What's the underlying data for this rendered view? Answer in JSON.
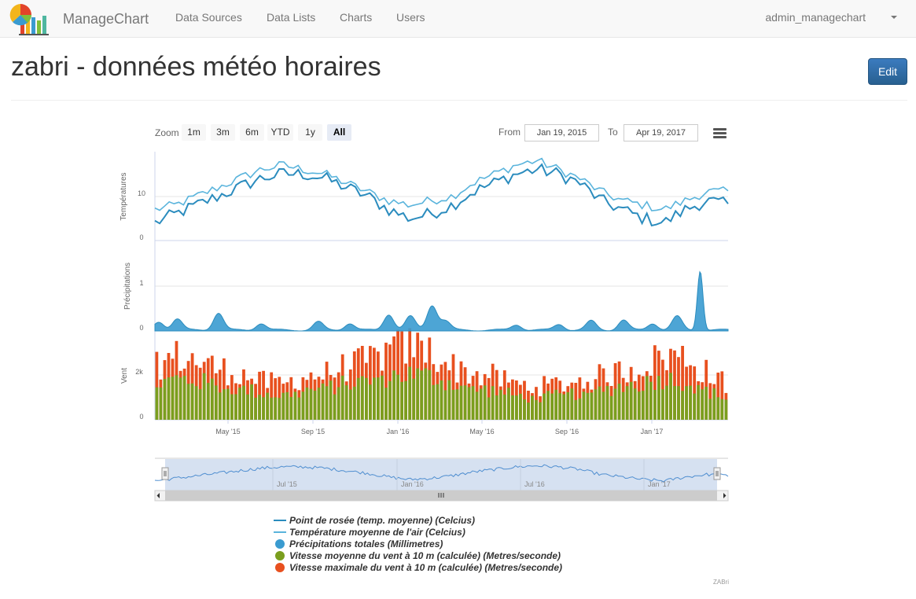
{
  "app": {
    "brand": "ManageChart"
  },
  "nav": [
    {
      "label": "Data Sources"
    },
    {
      "label": "Data Lists"
    },
    {
      "label": "Charts"
    },
    {
      "label": "Users"
    }
  ],
  "user": {
    "name": "admin_managechart"
  },
  "page": {
    "title": "zabri - données météo horaires",
    "edit_label": "Edit"
  },
  "toolbar": {
    "zoom_label": "Zoom",
    "zoom_buttons": [
      "1m",
      "3m",
      "6m",
      "YTD",
      "1y",
      "All"
    ],
    "selected_zoom": "All",
    "from_label": "From",
    "from_value": "Jan 19, 2015",
    "to_label": "To",
    "to_value": "Apr 19, 2017"
  },
  "credits": "ZABri",
  "colors": {
    "dew": "#2b8cbe",
    "air": "#5ab4dc",
    "precip": "#3a9bd0",
    "wind_avg": "#7a9e1e",
    "wind_max": "#e8501f"
  },
  "chart_data": {
    "type": "stock-multi-panel",
    "x_range": [
      "2015-01-19",
      "2017-04-19"
    ],
    "x_ticks": [
      "May '15",
      "Sep '15",
      "Jan '16",
      "May '16",
      "Sep '16",
      "Jan '17"
    ],
    "navigator_ticks": [
      "Jul '15",
      "Jan '16",
      "Jul '16",
      "Jan '17"
    ],
    "panels": [
      {
        "name": "temperatures",
        "ylabel": "Températures",
        "y_ticks": [
          "10",
          "0"
        ],
        "ylim": [
          0,
          20
        ],
        "series": [
          {
            "name": "Point de rosée (temp. moyenne) (Celcius)",
            "type": "line",
            "month_anchors": [
              4,
              6,
              8,
              10,
              12,
              14,
              15,
              15,
              14,
              12,
              10,
              7,
              5,
              6,
              8,
              11,
              13,
              15,
              16,
              15,
              13,
              9,
              7,
              5,
              4,
              7,
              9,
              8
            ]
          },
          {
            "name": "Température moyenne de l'air (Celcius)",
            "type": "line",
            "month_anchors": [
              7,
              8,
              10,
              12,
              14,
              16,
              17,
              16,
              15,
              13,
              11,
              9,
              8,
              9,
              10,
              13,
              15,
              17,
              18,
              16,
              14,
              11,
              9,
              8,
              7,
              9,
              11,
              11
            ]
          }
        ]
      },
      {
        "name": "precipitations",
        "ylabel": "Précipitations",
        "y_ticks": [
          "1",
          "0"
        ],
        "ylim": [
          0,
          2
        ],
        "series": [
          {
            "name": "Précipitations totales (Millimetres)",
            "type": "area",
            "baseline": 0.04,
            "peaks": [
              {
                "date": "2015-01-25",
                "value": 0.18
              },
              {
                "date": "2015-02-20",
                "value": 0.25
              },
              {
                "date": "2015-04-20",
                "value": 0.38
              },
              {
                "date": "2015-06-20",
                "value": 0.15
              },
              {
                "date": "2015-09-10",
                "value": 0.18
              },
              {
                "date": "2015-10-25",
                "value": 0.15
              },
              {
                "date": "2015-12-20",
                "value": 0.35
              },
              {
                "date": "2016-01-20",
                "value": 0.3
              },
              {
                "date": "2016-02-20",
                "value": 0.55
              },
              {
                "date": "2016-03-10",
                "value": 0.2
              },
              {
                "date": "2016-06-20",
                "value": 0.12
              },
              {
                "date": "2016-08-20",
                "value": 0.13
              },
              {
                "date": "2016-10-05",
                "value": 0.2
              },
              {
                "date": "2016-11-20",
                "value": 0.22
              },
              {
                "date": "2017-01-01",
                "value": 0.15
              },
              {
                "date": "2017-02-05",
                "value": 0.3
              },
              {
                "date": "2017-03-10",
                "value": 1.32
              }
            ]
          }
        ]
      },
      {
        "name": "vent",
        "ylabel": "Vent",
        "y_ticks": [
          "2k",
          "0"
        ],
        "ylim": [
          0,
          3500
        ],
        "series": [
          {
            "name": "Vitesse moyenne du vent à 10 m (calculée) (Metres/seconde)",
            "type": "column",
            "month_anchors": [
              1500,
              1700,
              1600,
              1400,
              1300,
              1100,
              1000,
              1200,
              1300,
              1500,
              1600,
              1800,
              1900,
              1800,
              1500,
              1300,
              1200,
              1000,
              900,
              1000,
              1100,
              1200,
              1400,
              1500,
              1700,
              1600,
              1200,
              900
            ]
          },
          {
            "name": "Vitesse maximale du vent à 10 m (calculée) (Metres/seconde)",
            "type": "column",
            "month_anchors": [
              2200,
              2500,
              2300,
              2000,
              1800,
              1500,
              1400,
              1700,
              1800,
              2100,
              2300,
              2700,
              2900,
              2700,
              2100,
              1800,
              1700,
              1400,
              1300,
              1400,
              1500,
              1700,
              1900,
              2100,
              2500,
              2500,
              1900,
              1400
            ]
          }
        ]
      }
    ]
  }
}
